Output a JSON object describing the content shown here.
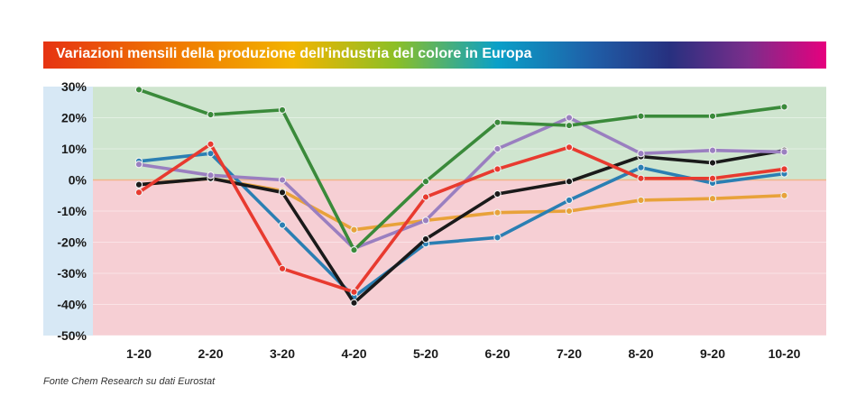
{
  "chart_data": {
    "type": "line",
    "title": "Variazioni mensili della produzione dell'industria del colore in Europa",
    "source": "Fonte Chem Research su dati Eurostat",
    "categories": [
      "1-20",
      "2-20",
      "3-20",
      "4-20",
      "5-20",
      "6-20",
      "7-20",
      "8-20",
      "9-20",
      "10-20"
    ],
    "ylim": [
      -50,
      30
    ],
    "yticks": [
      30,
      20,
      10,
      0,
      -10,
      -20,
      -30,
      -40,
      -50
    ],
    "ytick_labels": [
      "30%",
      "20%",
      "10%",
      "0%",
      "-10%",
      "-20%",
      "-30%",
      "-40%",
      "-50%"
    ],
    "xlabel": "",
    "ylabel": "",
    "background_bands": {
      "positive": "#cfe5cf",
      "negative": "#f6cfd4",
      "zero_line": "#f2b68a"
    },
    "series": [
      {
        "color": "#e8a23a",
        "values": [
          -1.5,
          0.5,
          -3.5,
          -16,
          -13,
          -10.5,
          -10,
          -6.5,
          -6,
          -5
        ]
      },
      {
        "color": "#2b7fb3",
        "values": [
          6,
          8.5,
          -14.5,
          -37.5,
          -20.5,
          -18.5,
          -6.5,
          4,
          -1,
          2
        ]
      },
      {
        "color": "#1a1a1a",
        "values": [
          -1.5,
          0.5,
          -4,
          -39.5,
          -19,
          -4.5,
          -0.5,
          7.5,
          5.5,
          9.5
        ]
      },
      {
        "color": "#9a7fc0",
        "values": [
          5,
          1.5,
          0,
          -22,
          -13,
          10,
          20,
          8.5,
          9.5,
          9
        ]
      },
      {
        "color": "#e83a2f",
        "values": [
          -4,
          11.5,
          -28.5,
          -36,
          -5.5,
          3.5,
          10.5,
          0.5,
          0.5,
          3.5
        ]
      },
      {
        "color": "#3a8a3a",
        "values": [
          29,
          21,
          22.5,
          -22.5,
          -0.5,
          18.5,
          17.5,
          20.5,
          20.5,
          23.5
        ]
      }
    ]
  }
}
